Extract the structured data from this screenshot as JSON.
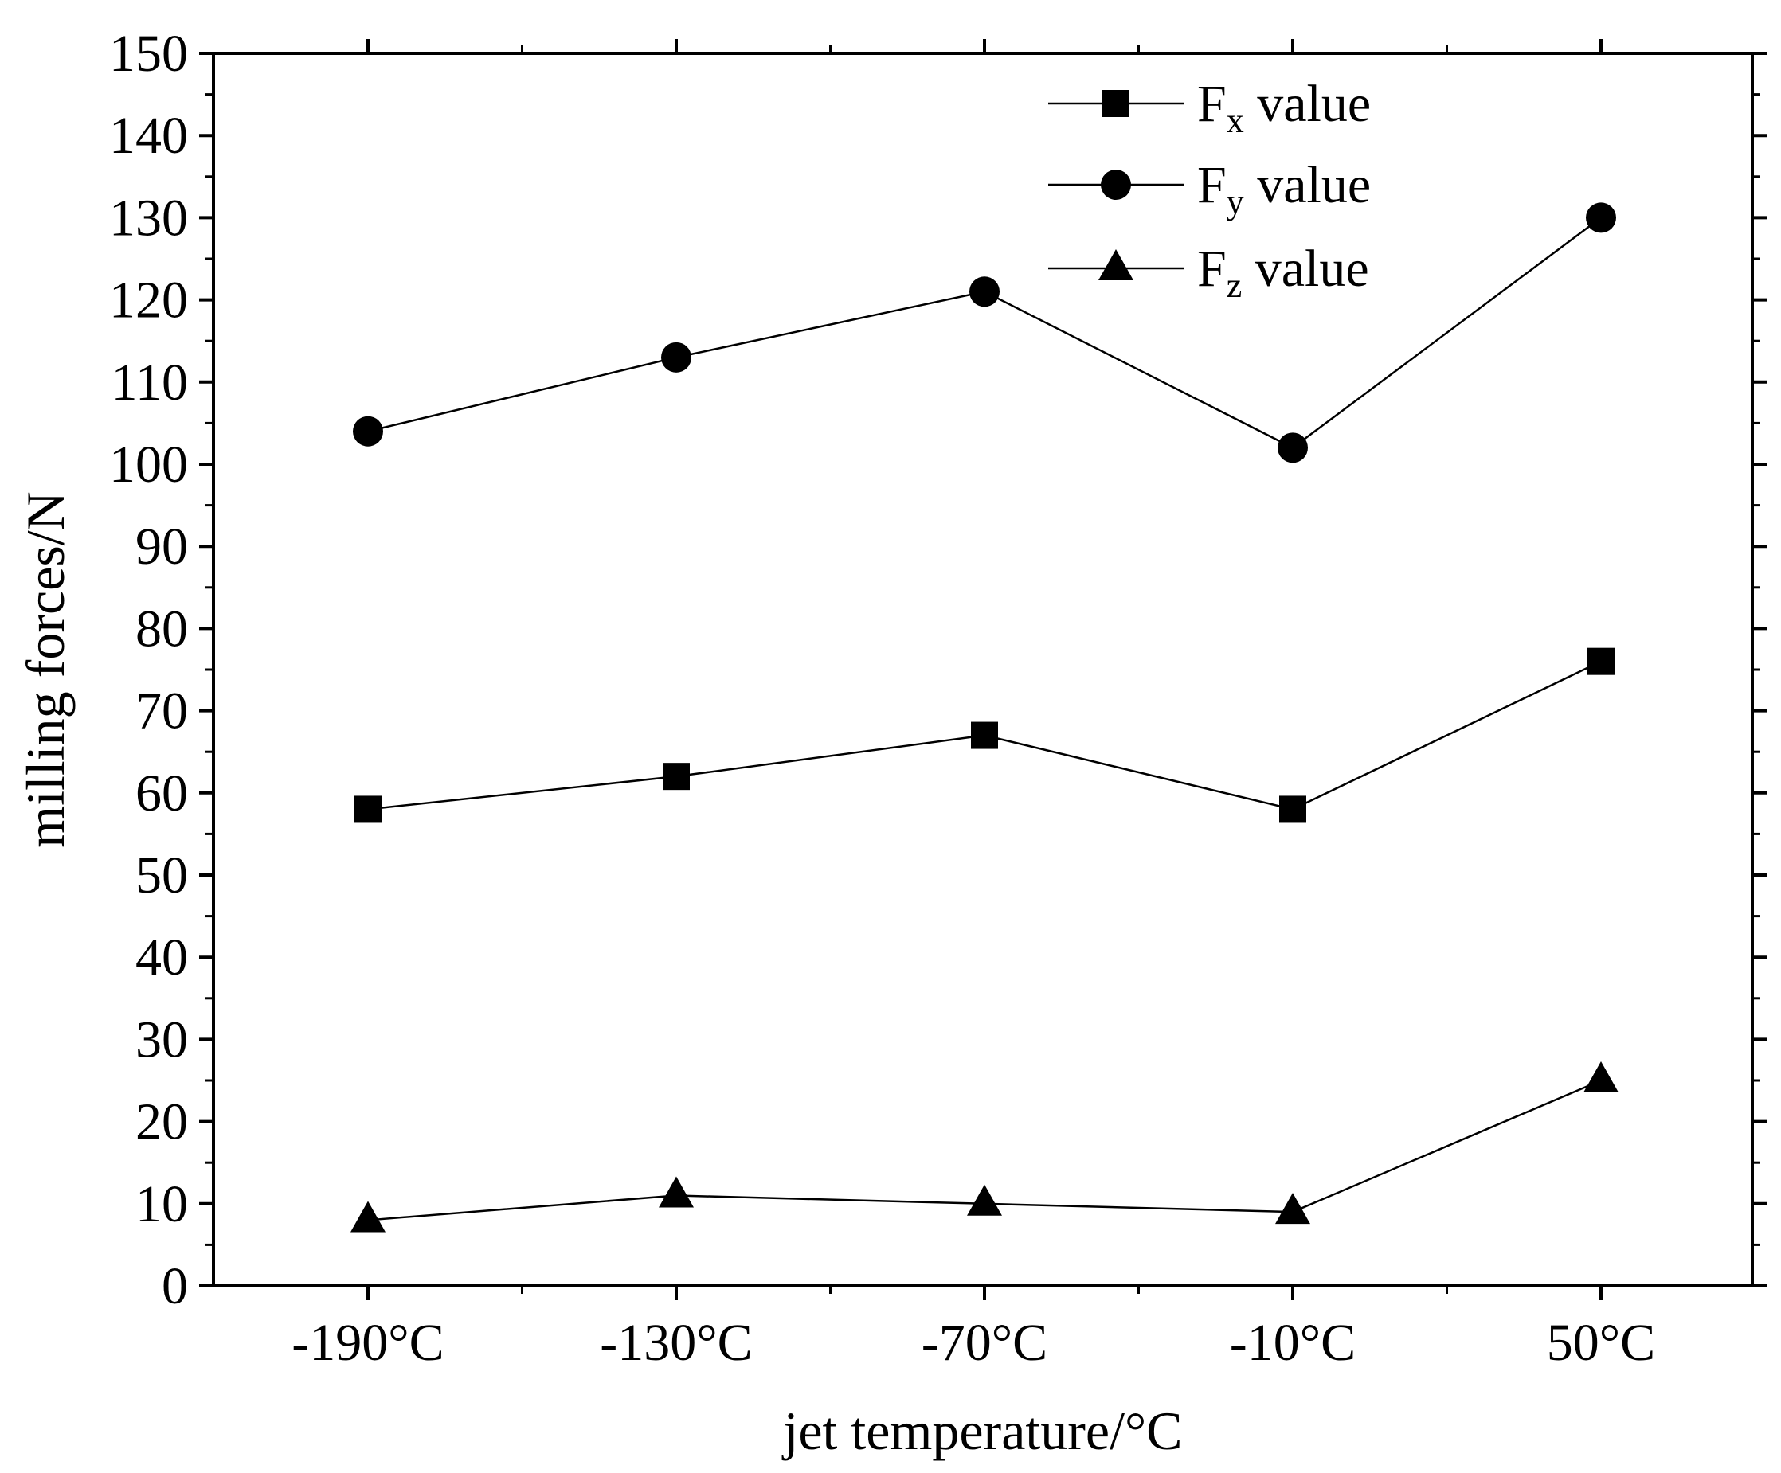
{
  "chart_data": {
    "type": "line",
    "title": "",
    "xlabel": "jet temperature/°C",
    "ylabel": "milling forces/N",
    "categories": [
      "-190°C",
      "-130°C",
      "-70°C",
      "-10°C",
      "50°C"
    ],
    "ylim": [
      0,
      150
    ],
    "y_ticks": [
      0,
      10,
      20,
      30,
      40,
      50,
      60,
      70,
      80,
      90,
      100,
      110,
      120,
      130,
      140,
      150
    ],
    "grid": false,
    "legend_position": "top-right",
    "series": [
      {
        "name": "Fx value",
        "letter": "F",
        "subscript": "x",
        "suffix": " value",
        "marker": "square",
        "values": [
          58,
          62,
          67,
          58,
          76
        ]
      },
      {
        "name": "Fy value",
        "letter": "F",
        "subscript": "y",
        "suffix": " value",
        "marker": "circle",
        "values": [
          104,
          113,
          121,
          102,
          130
        ]
      },
      {
        "name": "Fz value",
        "letter": "F",
        "subscript": "z",
        "suffix": " value",
        "marker": "triangle",
        "values": [
          8,
          11,
          10,
          9,
          25
        ]
      }
    ],
    "colors": {
      "line": "#000000",
      "marker": "#000000",
      "background": "#ffffff"
    }
  }
}
